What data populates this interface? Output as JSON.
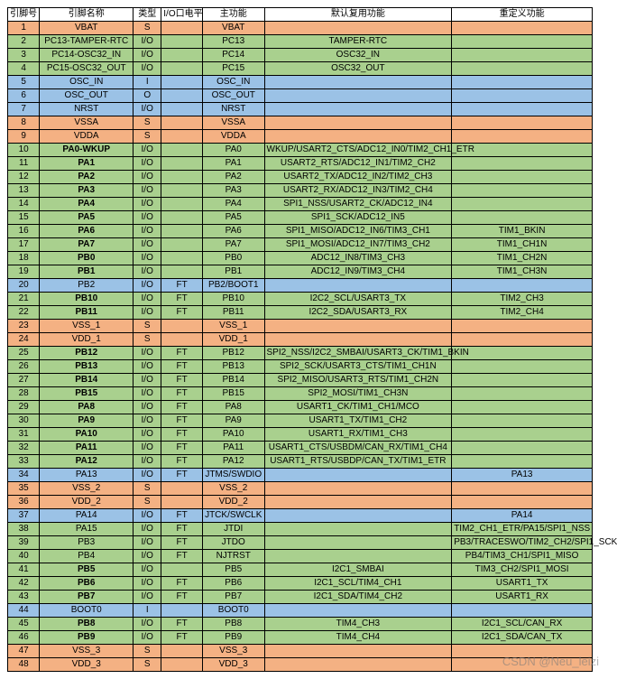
{
  "colors": {
    "orange": "#f4b183",
    "green": "#a9d08e",
    "blue": "#9bc2e6",
    "header": "#ffffff"
  },
  "watermark": "CSDN @Neu_leizi",
  "headers": [
    "引脚号",
    "引脚名称",
    "类型",
    "I/O口电平",
    "主功能",
    "默认复用功能",
    "重定义功能"
  ],
  "rows": [
    {
      "c": "orange",
      "pin": "1",
      "name": "VBAT",
      "bold": false,
      "type": "S",
      "level": "",
      "main": "VBAT",
      "alt": "",
      "remap": ""
    },
    {
      "c": "green",
      "pin": "2",
      "name": "PC13-TAMPER-RTC",
      "bold": false,
      "type": "I/O",
      "level": "",
      "main": "PC13",
      "alt": "TAMPER-RTC",
      "remap": ""
    },
    {
      "c": "green",
      "pin": "3",
      "name": "PC14-OSC32_IN",
      "bold": false,
      "type": "I/O",
      "level": "",
      "main": "PC14",
      "alt": "OSC32_IN",
      "remap": ""
    },
    {
      "c": "green",
      "pin": "4",
      "name": "PC15-OSC32_OUT",
      "bold": false,
      "type": "I/O",
      "level": "",
      "main": "PC15",
      "alt": "OSC32_OUT",
      "remap": ""
    },
    {
      "c": "blue",
      "pin": "5",
      "name": "OSC_IN",
      "bold": false,
      "type": "I",
      "level": "",
      "main": "OSC_IN",
      "alt": "",
      "remap": ""
    },
    {
      "c": "blue",
      "pin": "6",
      "name": "OSC_OUT",
      "bold": false,
      "type": "O",
      "level": "",
      "main": "OSC_OUT",
      "alt": "",
      "remap": ""
    },
    {
      "c": "blue",
      "pin": "7",
      "name": "NRST",
      "bold": false,
      "type": "I/O",
      "level": "",
      "main": "NRST",
      "alt": "",
      "remap": ""
    },
    {
      "c": "orange",
      "pin": "8",
      "name": "VSSA",
      "bold": false,
      "type": "S",
      "level": "",
      "main": "VSSA",
      "alt": "",
      "remap": ""
    },
    {
      "c": "orange",
      "pin": "9",
      "name": "VDDA",
      "bold": false,
      "type": "S",
      "level": "",
      "main": "VDDA",
      "alt": "",
      "remap": ""
    },
    {
      "c": "green",
      "pin": "10",
      "name": "PA0-WKUP",
      "bold": true,
      "type": "I/O",
      "level": "",
      "main": "PA0",
      "alt": "WKUP/USART2_CTS/ADC12_IN0/TIM2_CH1_ETR",
      "remap": ""
    },
    {
      "c": "green",
      "pin": "11",
      "name": "PA1",
      "bold": true,
      "type": "I/O",
      "level": "",
      "main": "PA1",
      "alt": "USART2_RTS/ADC12_IN1/TIM2_CH2",
      "remap": ""
    },
    {
      "c": "green",
      "pin": "12",
      "name": "PA2",
      "bold": true,
      "type": "I/O",
      "level": "",
      "main": "PA2",
      "alt": "USART2_TX/ADC12_IN2/TIM2_CH3",
      "remap": ""
    },
    {
      "c": "green",
      "pin": "13",
      "name": "PA3",
      "bold": true,
      "type": "I/O",
      "level": "",
      "main": "PA3",
      "alt": "USART2_RX/ADC12_IN3/TIM2_CH4",
      "remap": ""
    },
    {
      "c": "green",
      "pin": "14",
      "name": "PA4",
      "bold": true,
      "type": "I/O",
      "level": "",
      "main": "PA4",
      "alt": "SPI1_NSS/USART2_CK/ADC12_IN4",
      "remap": ""
    },
    {
      "c": "green",
      "pin": "15",
      "name": "PA5",
      "bold": true,
      "type": "I/O",
      "level": "",
      "main": "PA5",
      "alt": "SPI1_SCK/ADC12_IN5",
      "remap": ""
    },
    {
      "c": "green",
      "pin": "16",
      "name": "PA6",
      "bold": true,
      "type": "I/O",
      "level": "",
      "main": "PA6",
      "alt": "SPI1_MISO/ADC12_IN6/TIM3_CH1",
      "remap": "TIM1_BKIN"
    },
    {
      "c": "green",
      "pin": "17",
      "name": "PA7",
      "bold": true,
      "type": "I/O",
      "level": "",
      "main": "PA7",
      "alt": "SPI1_MOSI/ADC12_IN7/TIM3_CH2",
      "remap": "TIM1_CH1N"
    },
    {
      "c": "green",
      "pin": "18",
      "name": "PB0",
      "bold": true,
      "type": "I/O",
      "level": "",
      "main": "PB0",
      "alt": "ADC12_IN8/TIM3_CH3",
      "remap": "TIM1_CH2N"
    },
    {
      "c": "green",
      "pin": "19",
      "name": "PB1",
      "bold": true,
      "type": "I/O",
      "level": "",
      "main": "PB1",
      "alt": "ADC12_IN9/TIM3_CH4",
      "remap": "TIM1_CH3N"
    },
    {
      "c": "blue",
      "pin": "20",
      "name": "PB2",
      "bold": false,
      "type": "I/O",
      "level": "FT",
      "main": "PB2/BOOT1",
      "alt": "",
      "remap": ""
    },
    {
      "c": "green",
      "pin": "21",
      "name": "PB10",
      "bold": true,
      "type": "I/O",
      "level": "FT",
      "main": "PB10",
      "alt": "I2C2_SCL/USART3_TX",
      "remap": "TIM2_CH3"
    },
    {
      "c": "green",
      "pin": "22",
      "name": "PB11",
      "bold": true,
      "type": "I/O",
      "level": "FT",
      "main": "PB11",
      "alt": "I2C2_SDA/USART3_RX",
      "remap": "TIM2_CH4"
    },
    {
      "c": "orange",
      "pin": "23",
      "name": "VSS_1",
      "bold": false,
      "type": "S",
      "level": "",
      "main": "VSS_1",
      "alt": "",
      "remap": ""
    },
    {
      "c": "orange",
      "pin": "24",
      "name": "VDD_1",
      "bold": false,
      "type": "S",
      "level": "",
      "main": "VDD_1",
      "alt": "",
      "remap": ""
    },
    {
      "c": "green",
      "pin": "25",
      "name": "PB12",
      "bold": true,
      "type": "I/O",
      "level": "FT",
      "main": "PB12",
      "alt": "SPI2_NSS/I2C2_SMBAI/USART3_CK/TIM1_BKIN",
      "remap": ""
    },
    {
      "c": "green",
      "pin": "26",
      "name": "PB13",
      "bold": true,
      "type": "I/O",
      "level": "FT",
      "main": "PB13",
      "alt": "SPI2_SCK/USART3_CTS/TIM1_CH1N",
      "remap": ""
    },
    {
      "c": "green",
      "pin": "27",
      "name": "PB14",
      "bold": true,
      "type": "I/O",
      "level": "FT",
      "main": "PB14",
      "alt": "SPI2_MISO/USART3_RTS/TIM1_CH2N",
      "remap": ""
    },
    {
      "c": "green",
      "pin": "28",
      "name": "PB15",
      "bold": true,
      "type": "I/O",
      "level": "FT",
      "main": "PB15",
      "alt": "SPI2_MOSI/TIM1_CH3N",
      "remap": ""
    },
    {
      "c": "green",
      "pin": "29",
      "name": "PA8",
      "bold": true,
      "type": "I/O",
      "level": "FT",
      "main": "PA8",
      "alt": "USART1_CK/TIM1_CH1/MCO",
      "remap": ""
    },
    {
      "c": "green",
      "pin": "30",
      "name": "PA9",
      "bold": true,
      "type": "I/O",
      "level": "FT",
      "main": "PA9",
      "alt": "USART1_TX/TIM1_CH2",
      "remap": ""
    },
    {
      "c": "green",
      "pin": "31",
      "name": "PA10",
      "bold": true,
      "type": "I/O",
      "level": "FT",
      "main": "PA10",
      "alt": "USART1_RX/TIM1_CH3",
      "remap": ""
    },
    {
      "c": "green",
      "pin": "32",
      "name": "PA11",
      "bold": true,
      "type": "I/O",
      "level": "FT",
      "main": "PA11",
      "alt": "USART1_CTS/USBDM/CAN_RX/TIM1_CH4",
      "remap": ""
    },
    {
      "c": "green",
      "pin": "33",
      "name": "PA12",
      "bold": true,
      "type": "I/O",
      "level": "FT",
      "main": "PA12",
      "alt": "USART1_RTS/USBDP/CAN_TX/TIM1_ETR",
      "remap": ""
    },
    {
      "c": "blue",
      "pin": "34",
      "name": "PA13",
      "bold": false,
      "type": "I/O",
      "level": "FT",
      "main": "JTMS/SWDIO",
      "alt": "",
      "remap": "PA13"
    },
    {
      "c": "orange",
      "pin": "35",
      "name": "VSS_2",
      "bold": false,
      "type": "S",
      "level": "",
      "main": "VSS_2",
      "alt": "",
      "remap": ""
    },
    {
      "c": "orange",
      "pin": "36",
      "name": "VDD_2",
      "bold": false,
      "type": "S",
      "level": "",
      "main": "VDD_2",
      "alt": "",
      "remap": ""
    },
    {
      "c": "blue",
      "pin": "37",
      "name": "PA14",
      "bold": false,
      "type": "I/O",
      "level": "FT",
      "main": "JTCK/SWCLK",
      "alt": "",
      "remap": "PA14"
    },
    {
      "c": "green",
      "pin": "38",
      "name": "PA15",
      "bold": false,
      "type": "I/O",
      "level": "FT",
      "main": "JTDI",
      "alt": "",
      "remap": "TIM2_CH1_ETR/PA15/SPI1_NSS"
    },
    {
      "c": "green",
      "pin": "39",
      "name": "PB3",
      "bold": false,
      "type": "I/O",
      "level": "FT",
      "main": "JTDO",
      "alt": "",
      "remap": "PB3/TRACESWO/TIM2_CH2/SPI1_SCK"
    },
    {
      "c": "green",
      "pin": "40",
      "name": "PB4",
      "bold": false,
      "type": "I/O",
      "level": "FT",
      "main": "NJTRST",
      "alt": "",
      "remap": "PB4/TIM3_CH1/SPI1_MISO"
    },
    {
      "c": "green",
      "pin": "41",
      "name": "PB5",
      "bold": true,
      "type": "I/O",
      "level": "",
      "main": "PB5",
      "alt": "I2C1_SMBAI",
      "remap": "TIM3_CH2/SPI1_MOSI"
    },
    {
      "c": "green",
      "pin": "42",
      "name": "PB6",
      "bold": true,
      "type": "I/O",
      "level": "FT",
      "main": "PB6",
      "alt": "I2C1_SCL/TIM4_CH1",
      "remap": "USART1_TX"
    },
    {
      "c": "green",
      "pin": "43",
      "name": "PB7",
      "bold": true,
      "type": "I/O",
      "level": "FT",
      "main": "PB7",
      "alt": "I2C1_SDA/TIM4_CH2",
      "remap": "USART1_RX"
    },
    {
      "c": "blue",
      "pin": "44",
      "name": "BOOT0",
      "bold": false,
      "type": "I",
      "level": "",
      "main": "BOOT0",
      "alt": "",
      "remap": ""
    },
    {
      "c": "green",
      "pin": "45",
      "name": "PB8",
      "bold": true,
      "type": "I/O",
      "level": "FT",
      "main": "PB8",
      "alt": "TIM4_CH3",
      "remap": "I2C1_SCL/CAN_RX"
    },
    {
      "c": "green",
      "pin": "46",
      "name": "PB9",
      "bold": true,
      "type": "I/O",
      "level": "FT",
      "main": "PB9",
      "alt": "TIM4_CH4",
      "remap": "I2C1_SDA/CAN_TX"
    },
    {
      "c": "orange",
      "pin": "47",
      "name": "VSS_3",
      "bold": false,
      "type": "S",
      "level": "",
      "main": "VSS_3",
      "alt": "",
      "remap": ""
    },
    {
      "c": "orange",
      "pin": "48",
      "name": "VDD_3",
      "bold": false,
      "type": "S",
      "level": "",
      "main": "VDD_3",
      "alt": "",
      "remap": ""
    }
  ]
}
